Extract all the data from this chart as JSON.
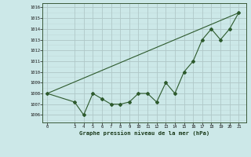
{
  "x": [
    0,
    3,
    4,
    5,
    6,
    7,
    8,
    9,
    10,
    11,
    12,
    13,
    14,
    15,
    16,
    17,
    18,
    19,
    20,
    21
  ],
  "y": [
    1008.0,
    1007.2,
    1006.0,
    1008.0,
    1007.5,
    1007.0,
    1007.0,
    1007.2,
    1008.0,
    1008.0,
    1007.2,
    1009.0,
    1008.0,
    1010.0,
    1011.0,
    1013.0,
    1014.0,
    1013.0,
    1014.0,
    1015.5
  ],
  "trend_x": [
    0,
    21
  ],
  "trend_y": [
    1008.0,
    1015.5
  ],
  "line_color": "#2d5a2d",
  "bg_color": "#cce8e8",
  "grid_major_color": "#b0c8c8",
  "grid_minor_color": "#c0d8d8",
  "title": "Graphe pression niveau de la mer (hPa)",
  "ylabel_values": [
    1006,
    1007,
    1008,
    1009,
    1010,
    1011,
    1012,
    1013,
    1014,
    1015,
    1016
  ],
  "xtick_labels": [
    "0",
    "3",
    "4",
    "5",
    "6",
    "7",
    "8",
    "9",
    "10",
    "11",
    "12",
    "13",
    "14",
    "15",
    "16",
    "17",
    "18",
    "19",
    "20",
    "21"
  ],
  "xtick_positions": [
    0,
    3,
    4,
    5,
    6,
    7,
    8,
    9,
    10,
    11,
    12,
    13,
    14,
    15,
    16,
    17,
    18,
    19,
    20,
    21
  ],
  "xlim": [
    -0.5,
    21.8
  ],
  "ylim": [
    1005.3,
    1016.4
  ]
}
